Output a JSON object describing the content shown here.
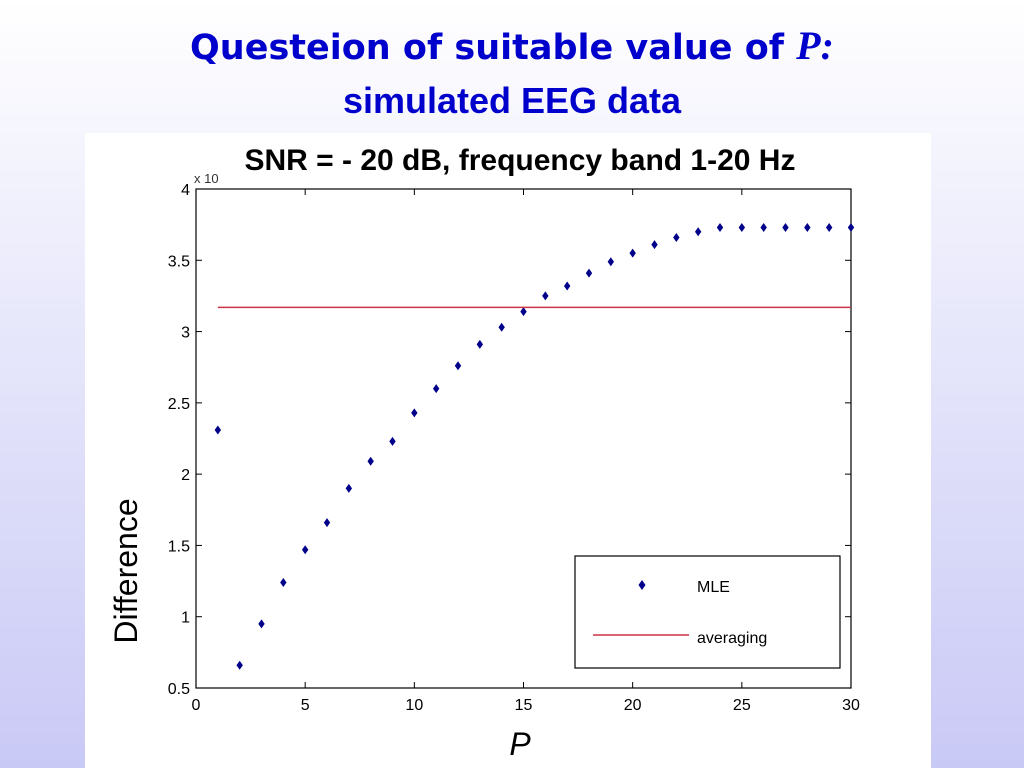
{
  "slide": {
    "title_line1": "Questeion of suitable value of",
    "title_var": "P:",
    "title_line2": "simulated EEG data"
  },
  "chart_data": {
    "type": "scatter",
    "title": "SNR = - 20 dB, frequency band 1-20 Hz",
    "xlabel": "P",
    "ylabel": "Difference",
    "y_multiplier_label": "x 10",
    "xlim": [
      0,
      30
    ],
    "ylim": [
      0.5,
      4
    ],
    "xticks": [
      "0",
      "5",
      "10",
      "15",
      "20",
      "25",
      "30"
    ],
    "yticks": [
      "0.5",
      "1",
      "1.5",
      "2",
      "2.5",
      "3",
      "3.5",
      "4"
    ],
    "legend_position": "bottom-right",
    "series": [
      {
        "name": "MLE",
        "kind": "points",
        "color": "#00008b",
        "x": [
          1,
          2,
          3,
          4,
          5,
          6,
          7,
          8,
          9,
          10,
          11,
          12,
          13,
          14,
          15,
          16,
          17,
          18,
          19,
          20,
          21,
          22,
          23,
          24,
          25,
          26,
          27,
          28,
          29,
          30
        ],
        "y": [
          2.31,
          0.66,
          0.95,
          1.24,
          1.47,
          1.66,
          1.9,
          2.09,
          2.23,
          2.43,
          2.6,
          2.76,
          2.91,
          3.03,
          3.14,
          3.25,
          3.32,
          3.41,
          3.49,
          3.55,
          3.61,
          3.66,
          3.7,
          3.73,
          3.73,
          3.73,
          3.73,
          3.73,
          3.73,
          3.73
        ]
      },
      {
        "name": "averaging",
        "kind": "line",
        "color": "#cc3344",
        "x": [
          1,
          30
        ],
        "y": [
          3.17,
          3.17
        ]
      }
    ]
  }
}
